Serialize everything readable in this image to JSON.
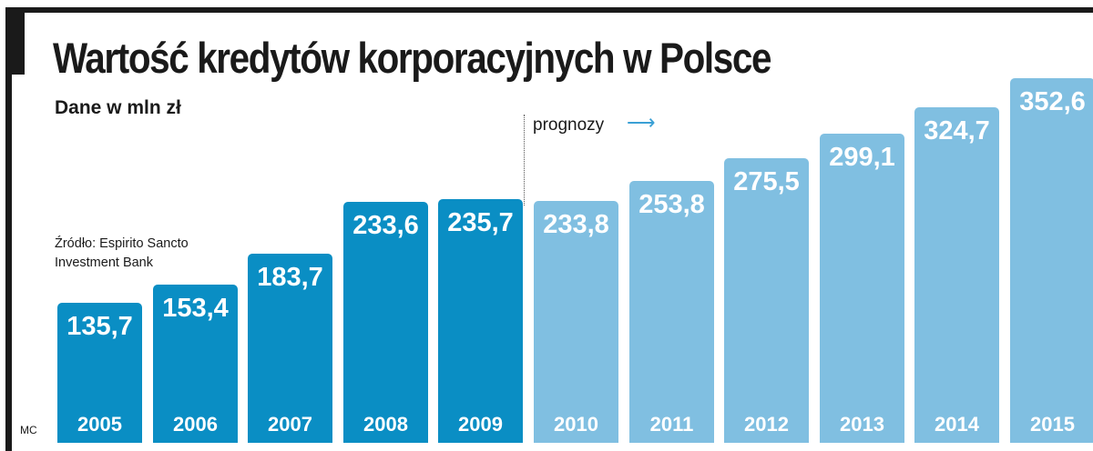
{
  "title": "Wartość kredytów korporacyjnych w Polsce",
  "subtitle": "Dane w mln zł",
  "source_line1": "Źródło: Espirito Sancto",
  "source_line2": "Investment Bank",
  "forecast_label": "prognozy",
  "forecast_arrow": "⟶",
  "credit": "MC",
  "colors": {
    "actual": "#0a8ec4",
    "forecast": "#80bfe1",
    "frame": "#1a1a1a",
    "arrow": "#3aa0d5"
  },
  "chart_data": {
    "type": "bar",
    "title": "Wartość kredytów korporacyjnych w Polsce",
    "subtitle": "Dane w mln zł",
    "categories": [
      "2005",
      "2006",
      "2007",
      "2008",
      "2009",
      "2010",
      "2011",
      "2012",
      "2013",
      "2014",
      "2015"
    ],
    "values": [
      135.7,
      153.4,
      183.7,
      233.6,
      235.7,
      233.8,
      253.8,
      275.5,
      299.1,
      324.7,
      352.6
    ],
    "value_labels": [
      "135,7",
      "153,4",
      "183,7",
      "233,6",
      "235,7",
      "233,8",
      "253,8",
      "275,5",
      "299,1",
      "324,7",
      "352,6"
    ],
    "forecast_from": "2010",
    "xlabel": "",
    "ylabel": "",
    "grid": false,
    "legend": "none"
  }
}
